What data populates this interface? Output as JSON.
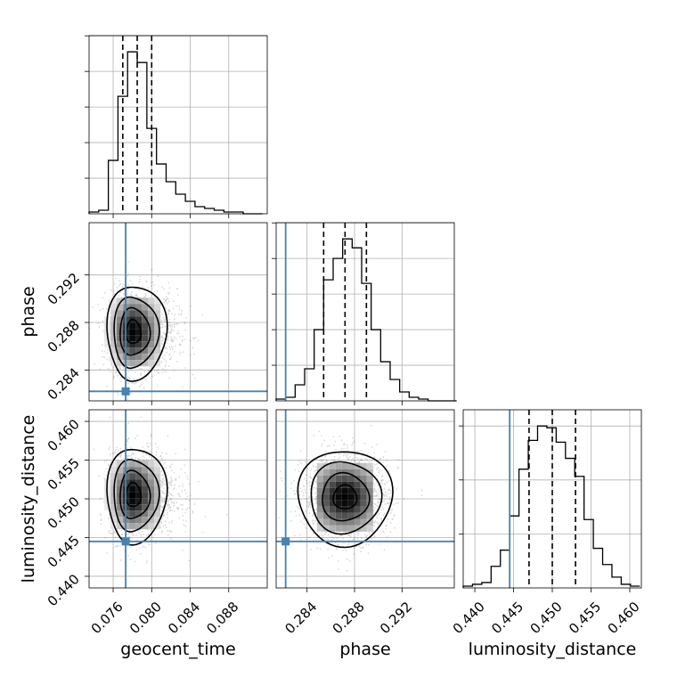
{
  "chart_data": {
    "type": "corner",
    "truth_color": "#4682b4",
    "line_color": "#000000",
    "grid": true,
    "parameters": [
      {
        "name": "geocent_time",
        "range": [
          0.0735,
          0.092
        ],
        "ticks": [
          "0.076",
          "0.080",
          "0.084",
          "0.088"
        ],
        "tick_values": [
          0.076,
          0.08,
          0.084,
          0.088
        ],
        "truth": 0.0773,
        "quantiles": [
          0.077,
          0.0785,
          0.08
        ],
        "hist_bin_edges": [
          0.0735,
          0.0745,
          0.0755,
          0.0765,
          0.0775,
          0.0785,
          0.0795,
          0.0805,
          0.0815,
          0.0825,
          0.0835,
          0.0845,
          0.0855,
          0.0865,
          0.0875,
          0.0885,
          0.0895,
          0.0905,
          0.0915
        ],
        "hist_counts": [
          1,
          2,
          30,
          66,
          91,
          85,
          48,
          28,
          18,
          11,
          7,
          4,
          3,
          2,
          1,
          1,
          0,
          0
        ]
      },
      {
        "name": "phase",
        "range": [
          0.2814,
          0.2964
        ],
        "ticks": [
          "0.284",
          "0.288",
          "0.292"
        ],
        "tick_values": [
          0.284,
          0.288,
          0.292
        ],
        "truth": 0.2822,
        "quantiles": [
          0.2854,
          0.2872,
          0.289
        ],
        "hist_bin_edges": [
          0.2814,
          0.2822,
          0.283,
          0.2838,
          0.2846,
          0.2854,
          0.2862,
          0.287,
          0.2878,
          0.2886,
          0.2894,
          0.2902,
          0.291,
          0.2918,
          0.2926,
          0.2934,
          0.2942,
          0.295,
          0.2958,
          0.2966
        ],
        "hist_counts": [
          1,
          2,
          9,
          18,
          40,
          68,
          80,
          91,
          86,
          66,
          40,
          22,
          12,
          5,
          2,
          1,
          0,
          0,
          0
        ]
      },
      {
        "name": "luminosity_distance",
        "range": [
          0.4385,
          0.4615
        ],
        "ticks": [
          "0.440",
          "0.445",
          "0.450",
          "0.455",
          "0.460"
        ],
        "tick_values": [
          0.44,
          0.445,
          0.45,
          0.455,
          0.46
        ],
        "truth": 0.4445,
        "quantiles": [
          0.447,
          0.45,
          0.453
        ],
        "hist_bin_edges": [
          0.4385,
          0.4397,
          0.4409,
          0.4421,
          0.4433,
          0.4445,
          0.4457,
          0.4469,
          0.4481,
          0.4493,
          0.4505,
          0.4517,
          0.4529,
          0.4541,
          0.4553,
          0.4565,
          0.4577,
          0.4589,
          0.4601,
          0.4613
        ],
        "hist_counts": [
          1,
          2,
          3,
          12,
          21,
          40,
          66,
          82,
          90,
          89,
          81,
          72,
          62,
          38,
          22,
          13,
          6,
          2,
          1
        ]
      }
    ],
    "pairs": [
      {
        "x": "geocent_time",
        "y": "phase",
        "mean": [
          0.078,
          0.2872
        ],
        "sd": [
          0.0012,
          0.0018
        ]
      },
      {
        "x": "geocent_time",
        "y": "luminosity_distance",
        "mean": [
          0.078,
          0.4505
        ],
        "sd": [
          0.0012,
          0.0028
        ]
      },
      {
        "x": "phase",
        "y": "luminosity_distance",
        "mean": [
          0.2872,
          0.4502
        ],
        "sd": [
          0.0018,
          0.0028
        ]
      }
    ]
  }
}
